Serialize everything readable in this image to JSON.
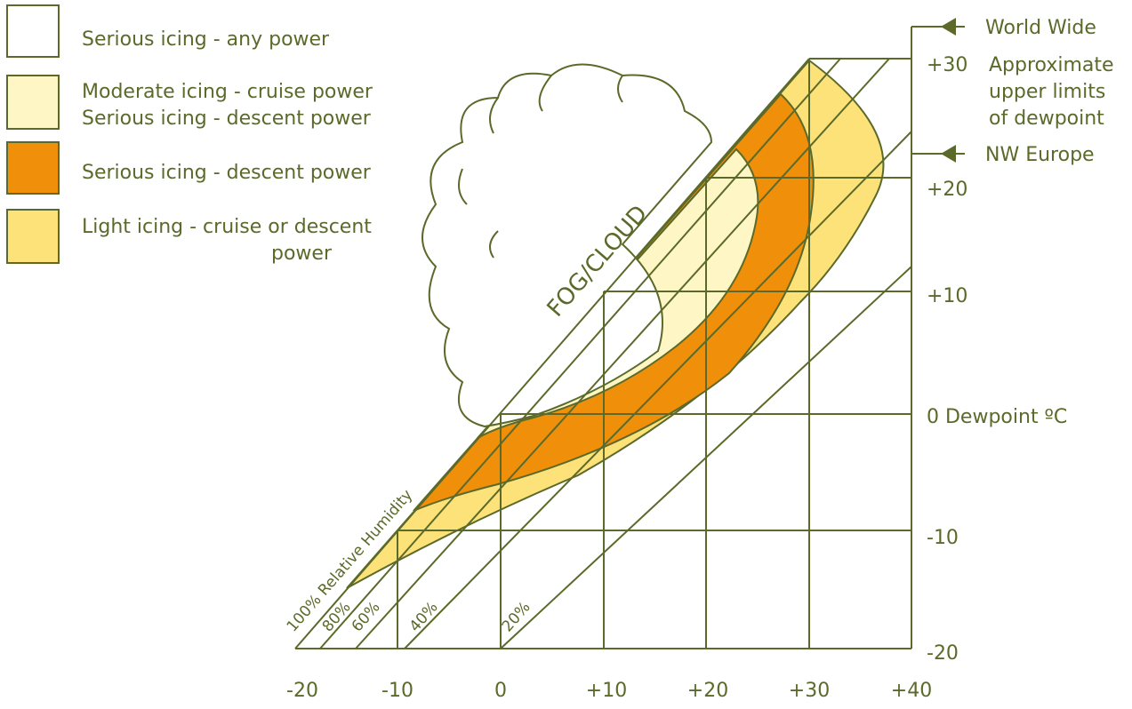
{
  "legend": [
    {
      "lines": [
        "Serious icing - any power"
      ]
    },
    {
      "lines": [
        "Moderate icing - cruise power",
        "Serious icing - descent power"
      ]
    },
    {
      "lines": [
        "Serious icing - descent power"
      ]
    },
    {
      "lines": [
        "Light icing - cruise or descent",
        "power"
      ]
    }
  ],
  "x_axis": {
    "labels": [
      "-20",
      "-10",
      "0",
      "+10",
      "+20",
      "+30",
      "+40"
    ]
  },
  "y_axis": {
    "labels": [
      "+30",
      "+20",
      "+10",
      "0 Dewpoint ºC",
      "-10",
      "-20"
    ]
  },
  "limits": {
    "world_wide": "World Wide",
    "nw_europe": "NW Europe",
    "note": [
      "Approximate",
      "upper limits",
      "of dewpoint"
    ]
  },
  "humidity_labels": [
    "100% Relative Humidity",
    "80%",
    "60%",
    "40%",
    "20%"
  ],
  "cloud_label": "FOG/CLOUD"
}
